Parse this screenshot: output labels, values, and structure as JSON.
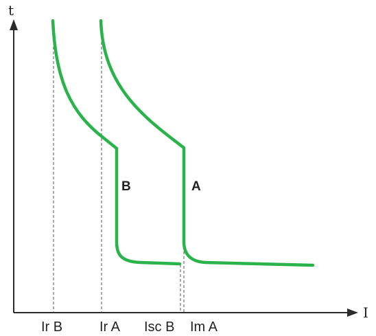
{
  "axes": {
    "y_label": "t",
    "x_label": "I"
  },
  "colors": {
    "curve": "#2ab34a",
    "axis": "#2b2b2b",
    "guide": "#555555"
  },
  "curves": [
    {
      "id": "B",
      "label": "B"
    },
    {
      "id": "A",
      "label": "A"
    }
  ],
  "tick_labels": [
    {
      "id": "ir-b",
      "text": "Ir B"
    },
    {
      "id": "ir-a",
      "text": "Ir A"
    },
    {
      "id": "isc-b",
      "text": "Isc B"
    },
    {
      "id": "im-a",
      "text": "Im A"
    }
  ]
}
